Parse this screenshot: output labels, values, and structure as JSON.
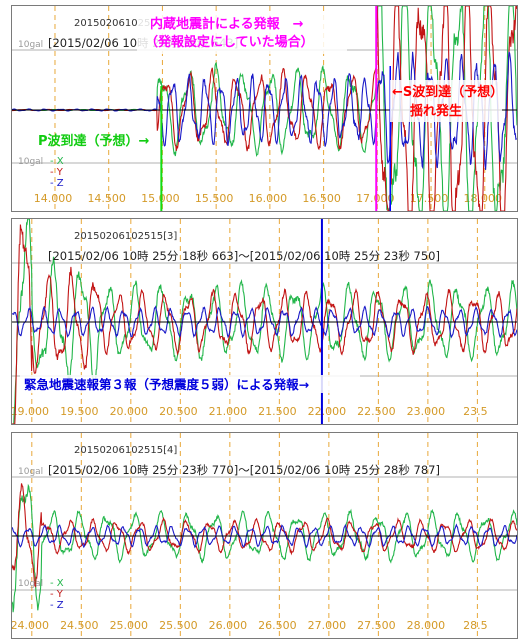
{
  "colors": {
    "x": "#22b64a",
    "y": "#c21515",
    "z": "#1a1ac8",
    "grid": "#e8a83a",
    "zero": "#000000",
    "gal": "#9a9a9a",
    "tick": "#d49a28",
    "trigger": "#ff00ff",
    "ptext": "#11cc11",
    "stext": "#ff0000",
    "alert": "#0000dd"
  },
  "legend": {
    "x": "X",
    "y": "Y",
    "z": "Z",
    "gal": "10gal"
  },
  "chart_data": [
    {
      "type": "line",
      "id": "201502061025",
      "range": "[2015/02/06 10時 25分 18秒 643]",
      "gal": "10gal",
      "xlim": [
        13.6,
        18.3
      ],
      "ticks": [
        "14.000",
        "14.500",
        "15.000",
        "15.500",
        "16.000",
        "16.500",
        "17.000",
        "17.500",
        "18.000"
      ],
      "series": [
        {
          "name": "X"
        },
        {
          "name": "Y"
        },
        {
          "name": "Z"
        }
      ],
      "annotations": {
        "trigger_title": "内蔵地震計による発報　→",
        "trigger_sub": "（発報設定にしていた場合）",
        "p_wave": "P波到達（予想）→",
        "s_wave_1": "←S波到達（予想）",
        "s_wave_2": "揺れ発生"
      },
      "p_time": 14.99,
      "trigger_time": 16.99
    },
    {
      "type": "line",
      "id": "20150206102515[3]",
      "range": "[2015/02/06 10時 25分 18秒 663]～[2015/02/06 10時 25分 23秒 750]",
      "xlim": [
        18.8,
        23.9
      ],
      "ticks": [
        "19.000",
        "19.500",
        "20.000",
        "20.500",
        "21.000",
        "21.500",
        "22.000",
        "22.500",
        "23.000",
        "23.5"
      ],
      "series": [
        {
          "name": "X"
        },
        {
          "name": "Y"
        },
        {
          "name": "Z"
        }
      ],
      "annotations": {
        "alert": "緊急地震速報第３報（予想震度５弱）による発報→"
      },
      "alert_time": 21.93
    },
    {
      "type": "line",
      "id": "20150206102515[4]",
      "range": "[2015/02/06 10時 25分 23秒 770]～[2015/02/06 10時 25分 28秒 787]",
      "gal": "10gal",
      "xlim": [
        23.8,
        28.9
      ],
      "ticks": [
        "24.000",
        "24.500",
        "25.000",
        "25.500",
        "26.000",
        "26.500",
        "27.000",
        "27.500",
        "28.000",
        "28.5"
      ],
      "series": [
        {
          "name": "X"
        },
        {
          "name": "Y"
        },
        {
          "name": "Z"
        }
      ]
    }
  ]
}
